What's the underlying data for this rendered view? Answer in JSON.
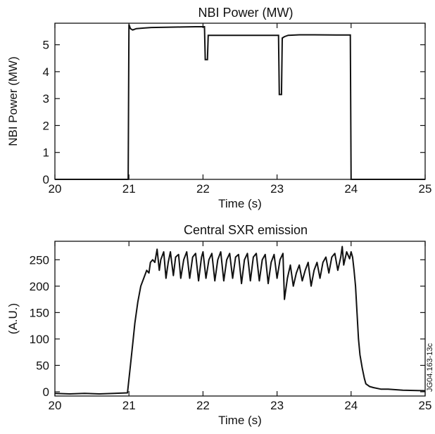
{
  "figure_id": "JG04.163-13c",
  "chart_data": [
    {
      "type": "line",
      "title": "NBI Power (MW)",
      "xlabel": "Time (s)",
      "ylabel": "NBI Power (MW)",
      "xlim": [
        20,
        25
      ],
      "ylim": [
        0,
        5.8
      ],
      "xticks": [
        20,
        21,
        22,
        23,
        24,
        25
      ],
      "yticks": [
        0,
        1,
        2,
        3,
        4,
        5
      ],
      "grid": false,
      "series": [
        {
          "x": [
            20.0,
            20.99,
            21.0,
            21.02,
            21.05,
            21.1,
            21.2,
            21.3,
            21.5,
            21.7,
            21.9,
            22.0,
            22.02,
            22.03,
            22.06,
            22.07,
            22.2,
            22.5,
            22.8,
            23.0,
            23.02,
            23.03,
            23.06,
            23.07,
            23.1,
            23.15,
            23.3,
            23.5,
            23.8,
            23.99,
            24.0,
            25.0
          ],
          "y": [
            0,
            0,
            5.75,
            5.6,
            5.55,
            5.6,
            5.62,
            5.64,
            5.65,
            5.66,
            5.67,
            5.67,
            5.67,
            4.45,
            4.45,
            5.35,
            5.35,
            5.35,
            5.35,
            5.35,
            5.35,
            3.15,
            3.15,
            5.25,
            5.3,
            5.35,
            5.37,
            5.37,
            5.36,
            5.36,
            0,
            0
          ]
        }
      ]
    },
    {
      "type": "line",
      "title": "Central SXR emission",
      "xlabel": "Time (s)",
      "ylabel": "(A.U.)",
      "xlim": [
        20,
        25
      ],
      "ylim": [
        -8,
        285
      ],
      "xticks": [
        20,
        21,
        22,
        23,
        24,
        25
      ],
      "yticks": [
        0,
        50,
        100,
        150,
        200,
        250
      ],
      "grid": false,
      "series": [
        {
          "x": [
            20.0,
            20.2,
            20.4,
            20.6,
            20.8,
            20.98,
            21.02,
            21.05,
            21.08,
            21.12,
            21.16,
            21.2,
            21.24,
            21.27,
            21.29,
            21.32,
            21.35,
            21.38,
            21.41,
            21.43,
            21.47,
            21.5,
            21.53,
            21.56,
            21.6,
            21.63,
            21.67,
            21.7,
            21.74,
            21.78,
            21.82,
            21.86,
            21.9,
            21.94,
            21.98,
            22.0,
            22.04,
            22.08,
            22.12,
            22.16,
            22.2,
            22.24,
            22.28,
            22.32,
            22.36,
            22.4,
            22.44,
            22.48,
            22.52,
            22.56,
            22.6,
            22.64,
            22.68,
            22.72,
            22.76,
            22.8,
            22.84,
            22.88,
            22.92,
            22.96,
            23.0,
            23.04,
            23.08,
            23.1,
            23.14,
            23.18,
            23.22,
            23.26,
            23.3,
            23.34,
            23.38,
            23.42,
            23.46,
            23.5,
            23.54,
            23.58,
            23.62,
            23.66,
            23.7,
            23.74,
            23.78,
            23.82,
            23.86,
            23.88,
            23.9,
            23.94,
            23.98,
            24.0,
            24.02,
            24.04,
            24.06,
            24.08,
            24.1,
            24.12,
            24.15,
            24.18,
            24.2,
            24.25,
            24.3,
            24.4,
            24.5,
            24.7,
            25.0
          ],
          "y": [
            -3,
            -4,
            -3,
            -4,
            -3,
            -2,
            50,
            90,
            130,
            170,
            200,
            215,
            230,
            225,
            245,
            250,
            245,
            270,
            230,
            250,
            265,
            215,
            245,
            265,
            220,
            255,
            260,
            215,
            250,
            265,
            215,
            255,
            262,
            210,
            255,
            265,
            215,
            250,
            262,
            210,
            250,
            265,
            210,
            250,
            262,
            215,
            255,
            260,
            205,
            250,
            262,
            210,
            255,
            262,
            210,
            250,
            260,
            205,
            245,
            260,
            215,
            250,
            262,
            175,
            215,
            240,
            200,
            225,
            240,
            210,
            230,
            245,
            200,
            230,
            245,
            215,
            245,
            255,
            225,
            255,
            262,
            230,
            255,
            275,
            240,
            265,
            252,
            265,
            255,
            230,
            200,
            150,
            100,
            70,
            45,
            25,
            15,
            10,
            8,
            5,
            5,
            3,
            2
          ]
        }
      ]
    }
  ]
}
